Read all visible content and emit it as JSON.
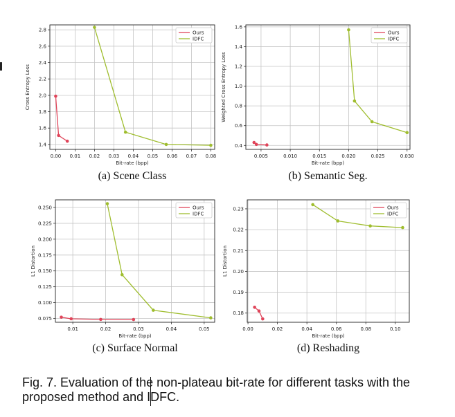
{
  "chart_data": [
    {
      "type": "line",
      "panel": "(a)  Scene Class",
      "xlabel": "Bit-rate (bpp)",
      "ylabel": "Cross Entropy Loss",
      "xlim": [
        -0.003,
        0.082
      ],
      "ylim": [
        1.34,
        2.86
      ],
      "xticks": [
        0.0,
        0.01,
        0.02,
        0.03,
        0.04,
        0.05,
        0.06,
        0.07,
        0.08
      ],
      "xticklabels": [
        "0.00",
        "0.01",
        "0.02",
        "0.03",
        "0.04",
        "0.05",
        "0.06",
        "0.07",
        "0.08"
      ],
      "yticks": [
        1.4,
        1.6,
        1.8,
        2.0,
        2.2,
        2.4,
        2.6,
        2.8
      ],
      "yticklabels": [
        "1.4",
        "1.6",
        "1.8",
        "2.0",
        "2.2",
        "2.4",
        "2.6",
        "2.8"
      ],
      "grid": true,
      "legend": "top-right",
      "series": [
        {
          "name": "Ours",
          "color": "#e0455a",
          "x": [
            0.0,
            0.0015,
            0.006
          ],
          "y": [
            1.99,
            1.51,
            1.44
          ]
        },
        {
          "name": "IDFC",
          "color": "#9fbd2e",
          "x": [
            0.02,
            0.036,
            0.057,
            0.08
          ],
          "y": [
            2.83,
            1.55,
            1.4,
            1.39
          ]
        }
      ]
    },
    {
      "type": "line",
      "panel": "(b)  Semantic Seg.",
      "xlabel": "Bit-rate (bpp)",
      "ylabel": "Weighted Cross Entropy Loss",
      "xlim": [
        0.0024,
        0.0305
      ],
      "ylim": [
        0.36,
        1.62
      ],
      "xticks": [
        0.005,
        0.01,
        0.015,
        0.02,
        0.025,
        0.03
      ],
      "xticklabels": [
        "0.005",
        "0.010",
        "0.015",
        "0.020",
        "0.025",
        "0.030"
      ],
      "yticks": [
        0.4,
        0.6,
        0.8,
        1.0,
        1.2,
        1.4,
        1.6
      ],
      "yticklabels": [
        "0.4",
        "0.6",
        "0.8",
        "1.0",
        "1.2",
        "1.4",
        "1.6"
      ],
      "grid": true,
      "legend": "top-right",
      "series": [
        {
          "name": "Ours",
          "color": "#e0455a",
          "x": [
            0.0038,
            0.0042,
            0.006
          ],
          "y": [
            0.43,
            0.41,
            0.405
          ]
        },
        {
          "name": "IDFC",
          "color": "#9fbd2e",
          "x": [
            0.02,
            0.021,
            0.024,
            0.03
          ],
          "y": [
            1.57,
            0.85,
            0.64,
            0.53
          ]
        }
      ]
    },
    {
      "type": "line",
      "panel": "(c)  Surface Normal",
      "xlabel": "Bit-rate (bpp)",
      "ylabel": "L1 Distortion",
      "xlim": [
        0.0047,
        0.0532
      ],
      "ylim": [
        0.069,
        0.262
      ],
      "xticks": [
        0.01,
        0.02,
        0.03,
        0.04,
        0.05
      ],
      "xticklabels": [
        "0.01",
        "0.02",
        "0.03",
        "0.04",
        "0.05"
      ],
      "yticks": [
        0.075,
        0.1,
        0.125,
        0.15,
        0.175,
        0.2,
        0.225,
        0.25
      ],
      "yticklabels": [
        "0.075",
        "0.100",
        "0.125",
        "0.150",
        "0.175",
        "0.200",
        "0.225",
        "0.250"
      ],
      "grid": true,
      "legend": "top-right",
      "series": [
        {
          "name": "Ours",
          "color": "#e0455a",
          "x": [
            0.0065,
            0.0095,
            0.0185,
            0.0285
          ],
          "y": [
            0.077,
            0.0745,
            0.0735,
            0.0733
          ]
        },
        {
          "name": "IDFC",
          "color": "#9fbd2e",
          "x": [
            0.0205,
            0.025,
            0.0345,
            0.052
          ],
          "y": [
            0.256,
            0.144,
            0.088,
            0.076
          ]
        }
      ]
    },
    {
      "type": "line",
      "panel": "(d)  Reshading",
      "xlabel": "Bit-rate (bpp)",
      "ylabel": "L1 Distortion",
      "xlim": [
        -0.0005,
        0.1095
      ],
      "ylim": [
        0.1756,
        0.2343
      ],
      "xticks": [
        0.0,
        0.02,
        0.04,
        0.06,
        0.08,
        0.1
      ],
      "xticklabels": [
        "0.00",
        "0.02",
        "0.04",
        "0.06",
        "0.08",
        "0.10"
      ],
      "yticks": [
        0.18,
        0.19,
        0.2,
        0.21,
        0.22,
        0.23
      ],
      "yticklabels": [
        "0.18",
        "0.19",
        "0.20",
        "0.21",
        "0.22",
        "0.23"
      ],
      "grid": true,
      "legend": "top-right",
      "series": [
        {
          "name": "Ours",
          "color": "#e0455a",
          "x": [
            0.0045,
            0.0075,
            0.01
          ],
          "y": [
            0.1828,
            0.181,
            0.1772
          ]
        },
        {
          "name": "IDFC",
          "color": "#9fbd2e",
          "x": [
            0.044,
            0.061,
            0.083,
            0.105
          ],
          "y": [
            0.232,
            0.2242,
            0.2218,
            0.221
          ]
        }
      ]
    }
  ],
  "caption": "Fig. 7. Evaluation of the non-plateau bit-rate for different tasks with the proposed method and IDFC."
}
